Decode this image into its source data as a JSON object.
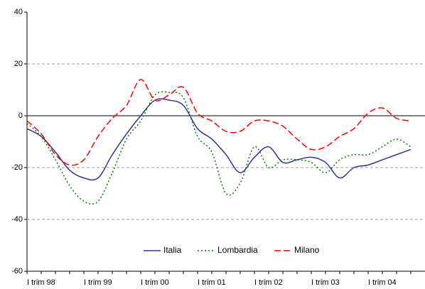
{
  "chart_data": {
    "type": "line",
    "categories": [
      "I trim 98",
      null,
      null,
      null,
      "I trim 99",
      null,
      null,
      null,
      "I trim 00",
      null,
      null,
      null,
      "I trim 01",
      null,
      null,
      null,
      "I trim 02",
      null,
      null,
      null,
      "I trim 03",
      null,
      null,
      null,
      "I trim 04",
      null,
      null,
      null
    ],
    "series": [
      {
        "name": "Italia",
        "color": "#333399",
        "dash": "none",
        "values": [
          -5,
          -8,
          -14,
          -21,
          -24,
          -24,
          -15,
          -7,
          0,
          6,
          6,
          4,
          -5,
          -9,
          -15,
          -22,
          -16,
          -12,
          -18,
          -17,
          -16,
          -18,
          -24,
          -20,
          -19,
          -17,
          -15,
          -13
        ]
      },
      {
        "name": "Lombardia",
        "color": "#008000",
        "dash": "2,3",
        "values": [
          -3,
          -8,
          -17,
          -27,
          -33,
          -33,
          -22,
          -9,
          -2,
          8,
          9,
          7,
          -8,
          -14,
          -30,
          -26,
          -12,
          -20,
          -17,
          -17,
          -18,
          -22,
          -17,
          -15,
          -15,
          -12,
          -9,
          -12
        ]
      },
      {
        "name": "Milano",
        "color": "#ff0000",
        "dash": "9,4",
        "values": [
          -2,
          -7,
          -15,
          -19,
          -17,
          -8,
          -1,
          4,
          14,
          6,
          8,
          11,
          1,
          -2,
          -6,
          -6,
          -2,
          -2,
          -4,
          -9,
          -13,
          -12,
          -8,
          -5,
          1,
          3,
          -1,
          -2
        ]
      }
    ],
    "ylim": [
      -60,
      40
    ],
    "yticks": [
      -60,
      -40,
      -20,
      0,
      20,
      40
    ],
    "grid": true
  }
}
